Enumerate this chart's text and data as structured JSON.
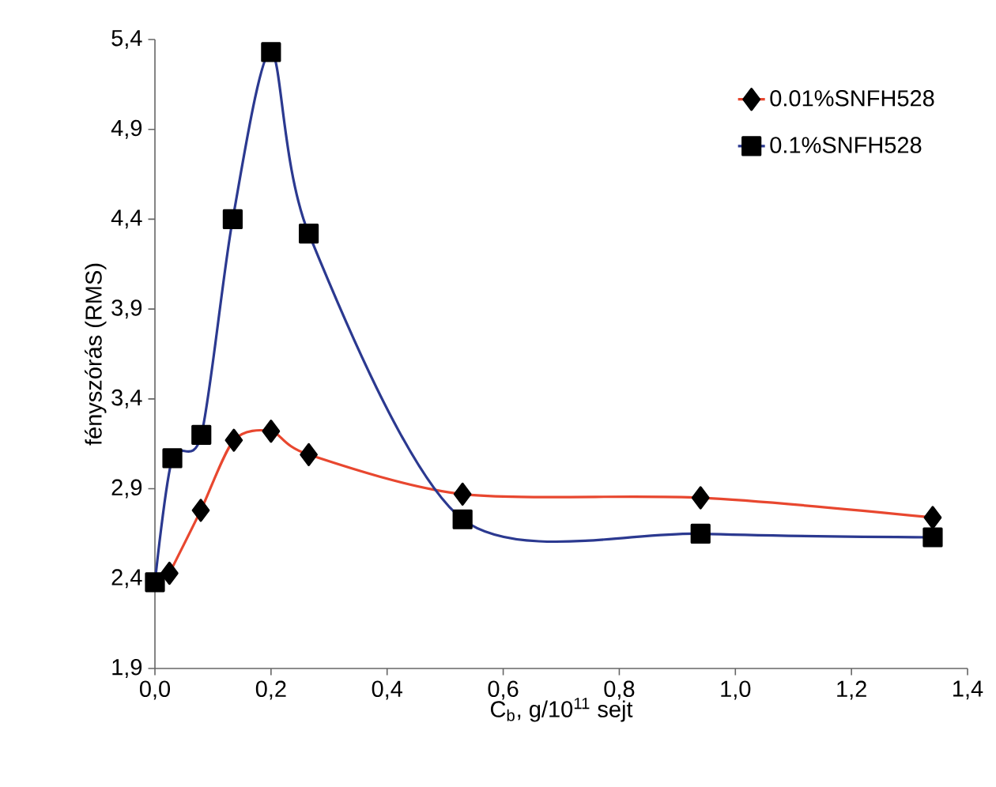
{
  "chart_data": {
    "type": "line",
    "xlabel": "C$_{b}$, g/10$^{11}$ sejt",
    "ylabel": "fényszórás (RMS)",
    "xlim": [
      0,
      1.4
    ],
    "ylim": [
      1.9,
      5.4
    ],
    "xticks": [
      {
        "value": 0,
        "label": "0,0"
      },
      {
        "value": 0.2,
        "label": "0,2"
      },
      {
        "value": 0.4,
        "label": "0,4"
      },
      {
        "value": 0.6,
        "label": "0,6"
      },
      {
        "value": 0.8,
        "label": "0,8"
      },
      {
        "value": 1.0,
        "label": "1,0"
      },
      {
        "value": 1.2,
        "label": "1,2"
      },
      {
        "value": 1.4,
        "label": "1,4"
      }
    ],
    "yticks": [
      {
        "value": 1.9,
        "label": "1,9"
      },
      {
        "value": 2.4,
        "label": "2,4"
      },
      {
        "value": 2.9,
        "label": "2,9"
      },
      {
        "value": 3.4,
        "label": "3,4"
      },
      {
        "value": 3.9,
        "label": "3,9"
      },
      {
        "value": 4.4,
        "label": "4,4"
      },
      {
        "value": 4.9,
        "label": "4,9"
      },
      {
        "value": 5.4,
        "label": "5,4"
      }
    ],
    "legend": "top right",
    "grid": false,
    "series": [
      {
        "name": "0.01%SNFH528",
        "color": "#e8472f",
        "marker": "diamond",
        "x": [
          0.025,
          0.079,
          0.136,
          0.2,
          0.265,
          0.53,
          0.94,
          1.34
        ],
        "values": [
          2.43,
          2.78,
          3.17,
          3.22,
          3.09,
          2.87,
          2.85,
          2.74
        ]
      },
      {
        "name": "0.1%SNFH528",
        "color": "#2b3990",
        "marker": "square",
        "x": [
          0,
          0.03,
          0.08,
          0.134,
          0.2,
          0.265,
          0.53,
          0.94,
          1.34
        ],
        "values": [
          2.38,
          3.07,
          3.2,
          4.4,
          5.33,
          4.32,
          2.73,
          2.65,
          2.63
        ]
      }
    ]
  }
}
